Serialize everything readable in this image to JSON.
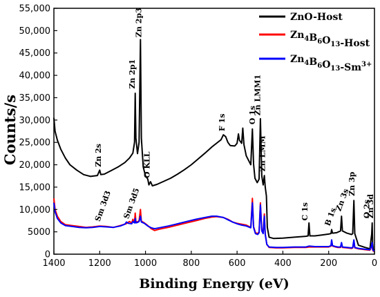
{
  "chart_data": {
    "type": "line",
    "xlabel": "Binding Energy (eV)",
    "ylabel": "Counts/s",
    "xlim": [
      1400,
      0
    ],
    "ylim": [
      0,
      55000
    ],
    "x_ticks": [
      1400,
      1200,
      1000,
      800,
      600,
      400,
      200,
      0
    ],
    "x_tick_labels": [
      "1400",
      "1200",
      "1000",
      "800",
      "600",
      "400",
      "200",
      "0"
    ],
    "y_ticks": [
      0,
      5000,
      10000,
      15000,
      20000,
      25000,
      30000,
      35000,
      40000,
      45000,
      50000,
      55000
    ],
    "y_tick_labels": [
      "0",
      "5000",
      "10,000",
      "15,000",
      "20,000",
      "25,000",
      "30,000",
      "35,000",
      "40,000",
      "45,000",
      "50,000",
      "55,000"
    ],
    "legend_position": "top-right",
    "series": [
      {
        "name": "ZnO-Host",
        "name_sub": [
          [
            "ZnO-Host",
            ""
          ]
        ],
        "color": "#000000",
        "points": [
          [
            1400,
            30500
          ],
          [
            1395,
            27500
          ],
          [
            1385,
            25500
          ],
          [
            1370,
            23500
          ],
          [
            1350,
            21500
          ],
          [
            1330,
            20000
          ],
          [
            1300,
            18800
          ],
          [
            1270,
            17800
          ],
          [
            1240,
            17400
          ],
          [
            1210,
            17600
          ],
          [
            1200,
            18800
          ],
          [
            1195,
            17800
          ],
          [
            1180,
            17900
          ],
          [
            1150,
            18700
          ],
          [
            1120,
            19500
          ],
          [
            1090,
            20500
          ],
          [
            1070,
            21500
          ],
          [
            1055,
            22600
          ],
          [
            1048,
            25000
          ],
          [
            1045,
            36000
          ],
          [
            1042,
            26000
          ],
          [
            1035,
            22500
          ],
          [
            1028,
            25000
          ],
          [
            1022,
            48000
          ],
          [
            1018,
            26000
          ],
          [
            1010,
            19500
          ],
          [
            1000,
            17500
          ],
          [
            990,
            16800
          ],
          [
            985,
            15500
          ],
          [
            978,
            16200
          ],
          [
            970,
            15300
          ],
          [
            950,
            15600
          ],
          [
            920,
            16300
          ],
          [
            890,
            17000
          ],
          [
            860,
            17900
          ],
          [
            830,
            18900
          ],
          [
            800,
            20000
          ],
          [
            770,
            21300
          ],
          [
            740,
            22600
          ],
          [
            710,
            24000
          ],
          [
            690,
            24800
          ],
          [
            670,
            25600
          ],
          [
            660,
            26700
          ],
          [
            650,
            26300
          ],
          [
            640,
            25000
          ],
          [
            630,
            24300
          ],
          [
            610,
            24200
          ],
          [
            600,
            24800
          ],
          [
            594,
            26900
          ],
          [
            590,
            25500
          ],
          [
            580,
            24800
          ],
          [
            575,
            28200
          ],
          [
            570,
            24500
          ],
          [
            560,
            22000
          ],
          [
            548,
            20800
          ],
          [
            540,
            20000
          ],
          [
            533,
            28000
          ],
          [
            528,
            20200
          ],
          [
            522,
            17000
          ],
          [
            512,
            16000
          ],
          [
            504,
            16800
          ],
          [
            498,
            30300
          ],
          [
            492,
            17500
          ],
          [
            486,
            15500
          ],
          [
            481,
            17600
          ],
          [
            477,
            15000
          ],
          [
            472,
            13000
          ],
          [
            468,
            6000
          ],
          [
            460,
            3800
          ],
          [
            440,
            3500
          ],
          [
            400,
            3600
          ],
          [
            350,
            3800
          ],
          [
            300,
            4000
          ],
          [
            290,
            4100
          ],
          [
            286,
            7000
          ],
          [
            282,
            4100
          ],
          [
            260,
            4100
          ],
          [
            230,
            4300
          ],
          [
            200,
            4500
          ],
          [
            190,
            4600
          ],
          [
            187,
            5500
          ],
          [
            183,
            4700
          ],
          [
            165,
            4800
          ],
          [
            148,
            5200
          ],
          [
            144,
            8500
          ],
          [
            140,
            5200
          ],
          [
            120,
            4700
          ],
          [
            100,
            4400
          ],
          [
            95,
            4600
          ],
          [
            90,
            12000
          ],
          [
            86,
            4600
          ],
          [
            70,
            2000
          ],
          [
            40,
            1500
          ],
          [
            20,
            1200
          ],
          [
            12,
            4500
          ],
          [
            10,
            7000
          ],
          [
            8,
            2500
          ],
          [
            5,
            1000
          ],
          [
            0,
            800
          ]
        ]
      },
      {
        "name": "Zn4B6O13-Host",
        "name_sub": [
          [
            "Zn",
            "4"
          ],
          [
            "B",
            "6"
          ],
          [
            "O",
            "13"
          ],
          [
            "-Host",
            ""
          ]
        ],
        "color": "#ff0000",
        "points": [
          [
            1400,
            12500
          ],
          [
            1395,
            10000
          ],
          [
            1385,
            8500
          ],
          [
            1370,
            7300
          ],
          [
            1350,
            6600
          ],
          [
            1320,
            6400
          ],
          [
            1290,
            6200
          ],
          [
            1260,
            6000
          ],
          [
            1230,
            6100
          ],
          [
            1200,
            6300
          ],
          [
            1170,
            6200
          ],
          [
            1140,
            6000
          ],
          [
            1110,
            6400
          ],
          [
            1085,
            6800
          ],
          [
            1070,
            7300
          ],
          [
            1060,
            7000
          ],
          [
            1055,
            7800
          ],
          [
            1048,
            7200
          ],
          [
            1045,
            9200
          ],
          [
            1042,
            7300
          ],
          [
            1035,
            7200
          ],
          [
            1028,
            7500
          ],
          [
            1022,
            10000
          ],
          [
            1018,
            7400
          ],
          [
            1005,
            7000
          ],
          [
            990,
            6400
          ],
          [
            975,
            5700
          ],
          [
            960,
            5300
          ],
          [
            940,
            5600
          ],
          [
            900,
            6000
          ],
          [
            860,
            6500
          ],
          [
            820,
            7000
          ],
          [
            780,
            7500
          ],
          [
            740,
            8000
          ],
          [
            710,
            8300
          ],
          [
            690,
            8400
          ],
          [
            660,
            8200
          ],
          [
            640,
            7800
          ],
          [
            620,
            7200
          ],
          [
            600,
            6900
          ],
          [
            580,
            6700
          ],
          [
            560,
            6500
          ],
          [
            540,
            6000
          ],
          [
            533,
            12500
          ],
          [
            528,
            6200
          ],
          [
            520,
            4800
          ],
          [
            510,
            4600
          ],
          [
            504,
            5000
          ],
          [
            498,
            11500
          ],
          [
            492,
            5500
          ],
          [
            486,
            4800
          ],
          [
            481,
            9000
          ],
          [
            477,
            4500
          ],
          [
            470,
            2200
          ],
          [
            460,
            1500
          ],
          [
            430,
            1400
          ],
          [
            400,
            1400
          ],
          [
            350,
            1500
          ],
          [
            300,
            1500
          ],
          [
            286,
            1600
          ],
          [
            260,
            1600
          ],
          [
            200,
            1600
          ],
          [
            190,
            1800
          ],
          [
            187,
            3000
          ],
          [
            183,
            1800
          ],
          [
            170,
            1600
          ],
          [
            160,
            1500
          ],
          [
            148,
            1500
          ],
          [
            144,
            2500
          ],
          [
            140,
            1500
          ],
          [
            120,
            1400
          ],
          [
            100,
            1300
          ],
          [
            95,
            1400
          ],
          [
            90,
            3000
          ],
          [
            86,
            1400
          ],
          [
            70,
            1200
          ],
          [
            40,
            1000
          ],
          [
            20,
            900
          ],
          [
            12,
            1800
          ],
          [
            10,
            2400
          ],
          [
            8,
            1000
          ],
          [
            5,
            700
          ],
          [
            0,
            600
          ]
        ]
      },
      {
        "name": "Zn4B6O13-Sm3+",
        "name_sub": [
          [
            "Zn",
            "4"
          ],
          [
            "B",
            "6"
          ],
          [
            "O",
            "13"
          ],
          [
            "-Sm",
            ""
          ],
          [
            "3+",
            "sup"
          ]
        ],
        "color": "#0000ff",
        "points": [
          [
            1400,
            11500
          ],
          [
            1395,
            9500
          ],
          [
            1385,
            8000
          ],
          [
            1370,
            7000
          ],
          [
            1350,
            6400
          ],
          [
            1320,
            6200
          ],
          [
            1290,
            6000
          ],
          [
            1260,
            5900
          ],
          [
            1230,
            6000
          ],
          [
            1200,
            6200
          ],
          [
            1170,
            6100
          ],
          [
            1140,
            6000
          ],
          [
            1110,
            6300
          ],
          [
            1090,
            6700
          ],
          [
            1083,
            7200
          ],
          [
            1075,
            6900
          ],
          [
            1060,
            6800
          ],
          [
            1055,
            7300
          ],
          [
            1048,
            7000
          ],
          [
            1045,
            8000
          ],
          [
            1042,
            7000
          ],
          [
            1035,
            7100
          ],
          [
            1028,
            7300
          ],
          [
            1022,
            8500
          ],
          [
            1018,
            7200
          ],
          [
            1005,
            6900
          ],
          [
            990,
            6300
          ],
          [
            975,
            5900
          ],
          [
            960,
            5700
          ],
          [
            940,
            5900
          ],
          [
            900,
            6300
          ],
          [
            860,
            6800
          ],
          [
            820,
            7300
          ],
          [
            780,
            7800
          ],
          [
            740,
            8200
          ],
          [
            710,
            8500
          ],
          [
            690,
            8500
          ],
          [
            660,
            8200
          ],
          [
            640,
            7700
          ],
          [
            620,
            7200
          ],
          [
            600,
            6800
          ],
          [
            580,
            6500
          ],
          [
            560,
            6300
          ],
          [
            540,
            5900
          ],
          [
            533,
            11500
          ],
          [
            528,
            6000
          ],
          [
            520,
            4600
          ],
          [
            510,
            4400
          ],
          [
            504,
            4800
          ],
          [
            498,
            11000
          ],
          [
            492,
            5200
          ],
          [
            486,
            4600
          ],
          [
            481,
            8500
          ],
          [
            477,
            4400
          ],
          [
            470,
            2200
          ],
          [
            460,
            1600
          ],
          [
            430,
            1500
          ],
          [
            400,
            1500
          ],
          [
            350,
            1600
          ],
          [
            300,
            1600
          ],
          [
            286,
            1800
          ],
          [
            260,
            1700
          ],
          [
            200,
            1700
          ],
          [
            190,
            1900
          ],
          [
            187,
            3200
          ],
          [
            183,
            1900
          ],
          [
            170,
            1700
          ],
          [
            160,
            1600
          ],
          [
            148,
            1600
          ],
          [
            144,
            2600
          ],
          [
            140,
            1600
          ],
          [
            120,
            1500
          ],
          [
            100,
            1400
          ],
          [
            95,
            1500
          ],
          [
            90,
            3200
          ],
          [
            86,
            1500
          ],
          [
            70,
            1300
          ],
          [
            40,
            1100
          ],
          [
            20,
            1000
          ],
          [
            12,
            2000
          ],
          [
            10,
            2600
          ],
          [
            8,
            1100
          ],
          [
            5,
            800
          ],
          [
            0,
            700
          ]
        ]
      }
    ],
    "annotations": [
      {
        "text": "Zn 2s",
        "x": 1195,
        "y": 19500,
        "rotate": -90
      },
      {
        "text": "Zn 2p1",
        "x": 1047,
        "y": 37000,
        "rotate": -90
      },
      {
        "text": "Zn 2p3",
        "x": 1018,
        "y": 48500,
        "rotate": -90
      },
      {
        "text": "O KLL",
        "x": 982,
        "y": 17000,
        "rotate": -90
      },
      {
        "text": "F 1s",
        "x": 655,
        "y": 27500,
        "rotate": -90
      },
      {
        "text": "O 1s",
        "x": 522,
        "y": 29000,
        "rotate": -90
      },
      {
        "text": "Zn LMM1",
        "x": 500,
        "y": 31000,
        "rotate": -90
      },
      {
        "text": "Zn LMM",
        "x": 478,
        "y": 18500,
        "rotate": -90
      },
      {
        "text": "Sm 3d3",
        "x": 1200,
        "y": 7200,
        "rotate": -70
      },
      {
        "text": "Sm 3d5",
        "x": 1075,
        "y": 7800,
        "rotate": -70
      },
      {
        "text": "C 1s",
        "x": 292,
        "y": 7500,
        "rotate": -90
      },
      {
        "text": "B 1s",
        "x": 196,
        "y": 6200,
        "rotate": -70
      },
      {
        "text": "Zn 3s",
        "x": 148,
        "y": 9500,
        "rotate": -70
      },
      {
        "text": "Zn 3p",
        "x": 88,
        "y": 13000,
        "rotate": -90
      },
      {
        "text": "O 2s",
        "x": 22,
        "y": 8000,
        "rotate": -90
      },
      {
        "text": "Zn 3d",
        "x": 6,
        "y": 8000,
        "rotate": -90
      }
    ]
  }
}
